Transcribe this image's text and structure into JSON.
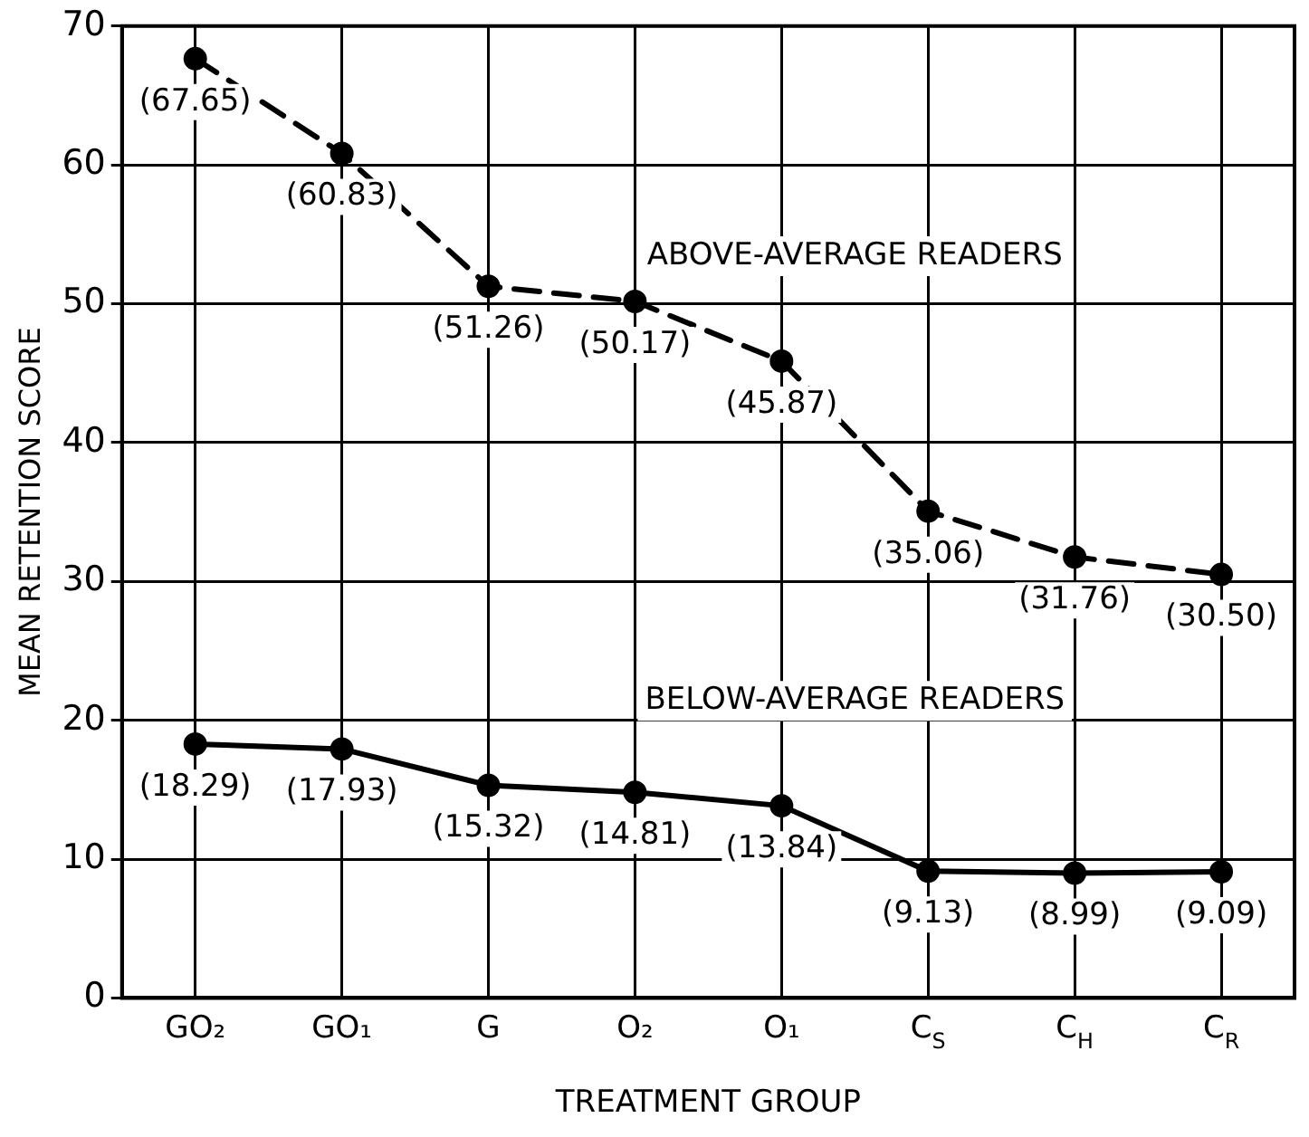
{
  "chart_data": {
    "type": "line",
    "xlabel": "TREATMENT GROUP",
    "ylabel": "MEAN RETENTION SCORE",
    "categories": [
      "GO₂",
      "GO₁",
      "G",
      "O₂",
      "O₁",
      "C$_{S}$",
      "C$_{H}$",
      "C$_{R}$"
    ],
    "series": [
      {
        "name": "ABOVE-AVERAGE READERS",
        "color": "#000000",
        "line_style": "dashed",
        "values": [
          67.65,
          60.83,
          51.26,
          50.17,
          45.87,
          35.06,
          31.76,
          30.5
        ],
        "value_labels": [
          "(67.65)",
          "(60.83)",
          "(51.26)",
          "(50.17)",
          "(45.87)",
          "(35.06)",
          "(31.76)",
          "(30.50)"
        ]
      },
      {
        "name": "BELOW-AVERAGE READERS",
        "color": "#000000",
        "line_style": "solid",
        "values": [
          18.29,
          17.93,
          15.32,
          14.81,
          13.84,
          9.13,
          8.99,
          9.09
        ],
        "value_labels": [
          "(18.29)",
          "(17.93)",
          "(15.32)",
          "(14.81)",
          "(13.84)",
          "(9.13)",
          "(8.99)",
          "(9.09)"
        ]
      }
    ],
    "ylim": [
      0,
      70
    ],
    "yticks": [
      0,
      10,
      20,
      30,
      40,
      50,
      60,
      70
    ],
    "grid": true,
    "marker": "circle",
    "legend": false
  }
}
